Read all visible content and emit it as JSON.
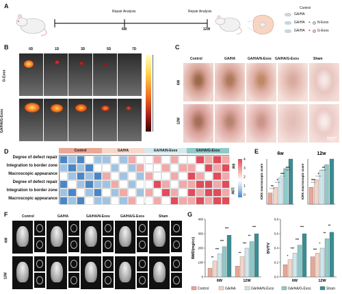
{
  "panel_a": {
    "letter": "A",
    "label_6w": "6W",
    "label_12w": "12W",
    "repair1": "Repair Analysis",
    "repair2": "Repair Analysis",
    "legend": [
      "Control",
      "GA/HA",
      "GA/HA + N-Exos",
      "GA/HA + G-Exos"
    ],
    "legend_parts": {
      "l1": "Control",
      "l2": "GA/HA",
      "l3a": "GA/HA",
      "l3b": "+",
      "l3c": "N-Exos",
      "l4a": "GA/HA",
      "l4b": "+",
      "l4c": "G-Exos"
    }
  },
  "panel_b": {
    "letter": "B",
    "days": [
      "0D",
      "1D",
      "3D",
      "5D",
      "7D"
    ],
    "rows": [
      "G-Exos",
      "GA/HA/G-Exos"
    ]
  },
  "panel_c": {
    "letter": "C",
    "cols": [
      "Control",
      "GA/HA",
      "GA/HA/N-Exos",
      "GA/HA/G-Exos",
      "Sham"
    ],
    "rows": [
      "6W",
      "12W"
    ],
    "scale": "1mm"
  },
  "panel_d": {
    "letter": "D",
    "groups": [
      "Control",
      "GA/HA",
      "GA/HA/N-Exos",
      "GA/HA/G-Exos"
    ],
    "row_labels": [
      "Degree of defect repair",
      "Integration to border zone",
      "Macroscopic appearance",
      "Degree of defect repair",
      "Integration to border zone",
      "Macroscopic appearance"
    ],
    "side_labels": [
      "6W",
      "12W"
    ],
    "scale_ticks": [
      "4",
      "3",
      "2",
      "1",
      "0"
    ]
  },
  "panel_e": {
    "letter": "E",
    "titles": [
      "6w",
      "12w"
    ],
    "ylabel": "ICRS macroscopic score"
  },
  "panel_f": {
    "letter": "F",
    "cols": [
      "Control",
      "GA/HA",
      "GA/HA/N-Exos",
      "GA/HA/G-Exos",
      "Sham"
    ],
    "rows": [
      "6W",
      "12W"
    ]
  },
  "panel_g": {
    "letter": "G",
    "ylabels": [
      "BMD(mg/cc)",
      "BV/TV"
    ],
    "xlabels": [
      "6W",
      "12W",
      "6W",
      "12W"
    ]
  },
  "legend_bottom": [
    "Control",
    "GA/HA",
    "GA/HA/N-Exos",
    "GA/HA/G-Exos",
    "Sham"
  ],
  "colors": {
    "Control": "#e8a796",
    "GA/HA": "#f4d4c6",
    "GA/HA/N-Exos": "#cfe6ec",
    "GA/HA/G-Exos": "#8fc9c8",
    "Sham": "#3a8d93"
  },
  "chart_data": [
    {
      "type": "bar",
      "title": "6w",
      "ylabel": "ICRS macroscopic score",
      "categories": [
        "Control",
        "GA/HA",
        "GA/HA/N-Exos",
        "GA/HA/G-Exos",
        "Sham"
      ],
      "values": [
        3,
        4.5,
        7,
        9.5,
        12
      ],
      "ylim": [
        0,
        12
      ],
      "annotations": [
        "**",
        "*",
        "***",
        "***"
      ]
    },
    {
      "type": "bar",
      "title": "12w",
      "ylabel": "ICRS macroscopic score",
      "categories": [
        "Control",
        "GA/HA",
        "GA/HA/N-Exos",
        "GA/HA/G-Exos",
        "Sham"
      ],
      "values": [
        4.5,
        6.5,
        9,
        10.5,
        12
      ],
      "ylim": [
        0,
        12
      ],
      "annotations": [
        "***",
        "*",
        "**"
      ]
    },
    {
      "type": "bar",
      "ylabel": "BMD(mg/cc)",
      "categories": [
        "6W",
        "12W"
      ],
      "series": [
        {
          "name": "Control",
          "values": [
            60,
            75
          ]
        },
        {
          "name": "GA/HA",
          "values": [
            110,
            140
          ]
        },
        {
          "name": "GA/HA/N-Exos",
          "values": [
            160,
            200
          ]
        },
        {
          "name": "GA/HA/G-Exos",
          "values": [
            210,
            245
          ]
        },
        {
          "name": "Sham",
          "values": [
            290,
            300
          ]
        }
      ],
      "ylim": [
        0,
        400
      ],
      "yticks": [
        "0",
        "100",
        "200",
        "300",
        "400"
      ],
      "annotations": [
        "**",
        "***",
        "***",
        "***",
        "**",
        "***",
        "**",
        "***"
      ]
    },
    {
      "type": "bar",
      "ylabel": "BV/TV",
      "categories": [
        "6W",
        "12W"
      ],
      "series": [
        {
          "name": "Control",
          "values": [
            0.17,
            0.28
          ]
        },
        {
          "name": "GA/HA",
          "values": [
            0.24,
            0.33
          ]
        },
        {
          "name": "GA/HA/N-Exos",
          "values": [
            0.33,
            0.4
          ]
        },
        {
          "name": "GA/HA/G-Exos",
          "values": [
            0.44,
            0.53
          ]
        },
        {
          "name": "Sham",
          "values": [
            0.6,
            0.62
          ]
        }
      ],
      "ylim": [
        0,
        0.8
      ],
      "yticks": [
        "0.0",
        "0.2",
        "0.4",
        "0.6",
        "0.8"
      ],
      "annotations": [
        "*",
        "***",
        "***",
        "***",
        "***",
        "*",
        "**",
        "**"
      ]
    }
  ]
}
